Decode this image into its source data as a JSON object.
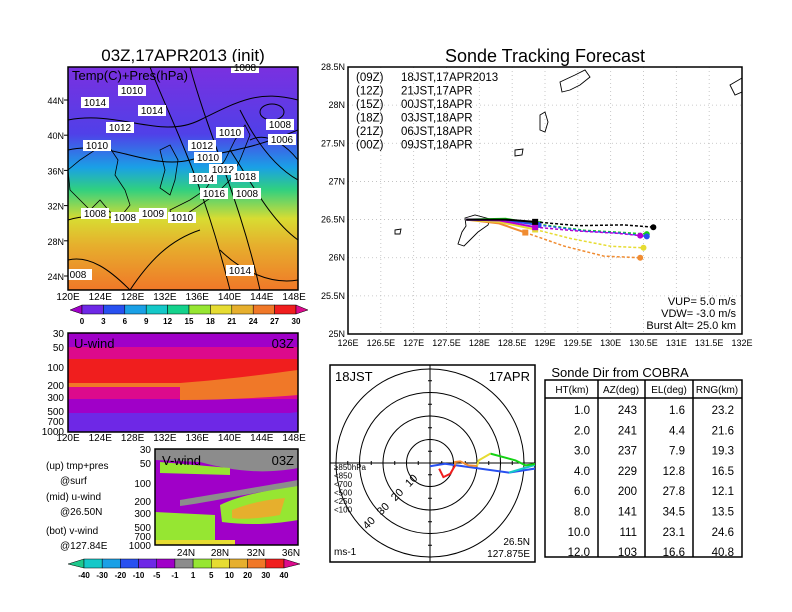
{
  "chart_data": [
    {
      "type": "heatmap",
      "title": "03Z,17APR2013 (init)",
      "label": "Temp(C)+Pres(hPa)",
      "xticks": [
        "120E",
        "124E",
        "128E",
        "132E",
        "136E",
        "140E",
        "144E",
        "148E"
      ],
      "yticks": [
        "24N",
        "28N",
        "32N",
        "36N",
        "40N",
        "44N"
      ],
      "contour_labels": [
        "1010",
        "1014",
        "1014",
        "1012",
        "1010",
        "1012",
        "1010",
        "1008",
        "1006",
        "1008",
        "1010",
        "1012",
        "1014",
        "1016",
        "1018",
        "1008",
        "1008",
        "1008",
        "1009",
        "1010",
        "1014",
        "008"
      ],
      "colorbar": {
        "labels": [
          "0",
          "3",
          "6",
          "9",
          "12",
          "15",
          "18",
          "21",
          "24",
          "27",
          "30"
        ],
        "colors": [
          "#a000c8",
          "#6e28e6",
          "#2850f0",
          "#1aa0e6",
          "#14c8c8",
          "#14d28c",
          "#96e632",
          "#e6dc32",
          "#e6af2d",
          "#f07828",
          "#f01e1e",
          "#dc0a8c"
        ]
      }
    },
    {
      "type": "heatmap",
      "label": "U-wind",
      "time": "03Z",
      "xticks": [
        "120E",
        "124E",
        "128E",
        "132E",
        "136E",
        "140E",
        "144E",
        "148E"
      ],
      "yticks": [
        "30",
        "50",
        "100",
        "200",
        "300",
        "500",
        "700",
        "1000"
      ]
    },
    {
      "type": "heatmap",
      "label": "V-wind",
      "time": "03Z",
      "xticks": [
        "24N",
        "28N",
        "32N",
        "36N"
      ],
      "yticks": [
        "30",
        "50",
        "100",
        "200",
        "300",
        "500",
        "700",
        "1000"
      ],
      "colorbar": {
        "labels": [
          "-40",
          "-30",
          "-20",
          "-10",
          "-5",
          "-1",
          "1",
          "5",
          "10",
          "20",
          "30",
          "40"
        ],
        "colors": [
          "#1ec88c",
          "#14c8c8",
          "#1aa0e6",
          "#2850f0",
          "#6e28e6",
          "#a000c8",
          "#8c8c8c",
          "#96e632",
          "#e6dc32",
          "#e6af2d",
          "#f07828",
          "#f01e1e",
          "#dc0a8c"
        ]
      }
    },
    {
      "type": "line",
      "title": "Sonde Tracking Forecast",
      "xticks": [
        126,
        126.5,
        127,
        127.5,
        128,
        128.5,
        129,
        129.5,
        130,
        130.5,
        131,
        131.5,
        132
      ],
      "xtick_labels": [
        "126E",
        "126.5E",
        "127E",
        "127.5E",
        "128E",
        "128.5E",
        "129E",
        "129.5E",
        "130E",
        "130.5E",
        "131E",
        "131.5E",
        "132E"
      ],
      "yticks": [
        25,
        25.5,
        26,
        26.5,
        27,
        27.5,
        28,
        28.5
      ],
      "ytick_labels": [
        "25N",
        "25.5N",
        "26N",
        "26.5N",
        "27N",
        "27.5N",
        "28N",
        "28.5N"
      ],
      "xlim": [
        126,
        132
      ],
      "ylim": [
        25,
        28.5
      ],
      "series": [
        {
          "name": "(09Z)",
          "label": "18JST,17APR2013",
          "color": "#000000",
          "solid": [
            [
              127.8,
              26.5
            ],
            [
              128.4,
              26.5
            ],
            [
              128.85,
              26.47
            ]
          ],
          "dashed": [
            [
              128.85,
              26.47
            ],
            [
              129.5,
              26.42
            ],
            [
              130.2,
              26.43
            ],
            [
              130.65,
              26.4
            ]
          ]
        },
        {
          "name": "(12Z)",
          "label": "21JST,17APR",
          "color": "#b400d2",
          "solid": [
            [
              127.8,
              26.5
            ],
            [
              128.3,
              26.49
            ],
            [
              128.85,
              26.4
            ]
          ],
          "dashed": [
            [
              128.85,
              26.4
            ],
            [
              129.5,
              26.35
            ],
            [
              130.1,
              26.32
            ],
            [
              130.45,
              26.29
            ]
          ]
        },
        {
          "name": "(15Z)",
          "label": "00JST,18APR",
          "color": "#2850f0",
          "solid": [
            [
              127.8,
              26.5
            ],
            [
              128.4,
              26.49
            ],
            [
              128.9,
              26.43
            ]
          ],
          "dashed": [
            [
              128.9,
              26.43
            ],
            [
              129.6,
              26.35
            ],
            [
              130.2,
              26.32
            ],
            [
              130.55,
              26.28
            ]
          ]
        },
        {
          "name": "(18Z)",
          "label": "03JST,18APR",
          "color": "#14d214",
          "solid": [
            [
              127.8,
              26.5
            ],
            [
              128.4,
              26.51
            ],
            [
              128.9,
              26.44
            ]
          ],
          "dashed": [
            [
              128.9,
              26.44
            ],
            [
              129.6,
              26.36
            ],
            [
              130.2,
              26.33
            ],
            [
              130.55,
              26.31
            ]
          ]
        },
        {
          "name": "(21Z)",
          "label": "06JST,18APR",
          "color": "#e6dc32",
          "solid": [
            [
              127.8,
              26.5
            ],
            [
              128.3,
              26.47
            ],
            [
              128.85,
              26.37
            ]
          ],
          "dashed": [
            [
              128.85,
              26.37
            ],
            [
              129.4,
              26.25
            ],
            [
              130.0,
              26.15
            ],
            [
              130.5,
              26.13
            ]
          ]
        },
        {
          "name": "(00Z)",
          "label": "09JST,18APR",
          "color": "#f08c32",
          "solid": [
            [
              127.8,
              26.5
            ],
            [
              128.3,
              26.45
            ],
            [
              128.7,
              26.33
            ]
          ],
          "dashed": [
            [
              128.7,
              26.33
            ],
            [
              129.3,
              26.15
            ],
            [
              129.9,
              26.02
            ],
            [
              130.45,
              26.0
            ]
          ]
        }
      ],
      "annotations": [
        "VUP= 5.0 m/s",
        "VDW= -3.0 m/s",
        "Burst Alt= 25.0 km"
      ]
    },
    {
      "type": "line",
      "title_left": "18JST",
      "title_right": "17APR",
      "ring_labels": [
        "10",
        "20",
        "30",
        "40"
      ],
      "unit": "ms-1",
      "location": [
        "26.5N",
        "127.875E"
      ],
      "legend": [
        {
          "label": "≥850hPa",
          "color": "#f01e1e"
        },
        {
          "label": "<850",
          "color": "#f08c32"
        },
        {
          "label": "<700",
          "color": "#e6dc32"
        },
        {
          "label": "<500",
          "color": "#14d214"
        },
        {
          "label": "<250",
          "color": "#14c8c8"
        },
        {
          "label": "<100",
          "color": "#2850f0"
        }
      ],
      "series": [
        {
          "name": "≥850hPa",
          "color": "#f01e1e",
          "uv": [
            [
              3.9,
              -2.4
            ],
            [
              5.7,
              -6.0
            ],
            [
              8.6,
              -4.6
            ],
            [
              10.7,
              -1.0
            ]
          ]
        },
        {
          "name": "<850",
          "color": "#f08c32",
          "uv": [
            [
              10.7,
              -1.0
            ],
            [
              10.7,
              0.4
            ],
            [
              12.9,
              0.7
            ],
            [
              16.4,
              -1.0
            ],
            [
              20.0,
              -1.3
            ]
          ]
        },
        {
          "name": "<700",
          "color": "#e6dc32",
          "uv": [
            [
              20.0,
              -1.3
            ],
            [
              20.7,
              1.1
            ],
            [
              25.7,
              4.0
            ]
          ]
        },
        {
          "name": "<500",
          "color": "#14d214",
          "uv": [
            [
              25.7,
              4.0
            ],
            [
              36.4,
              1.1
            ],
            [
              40.7,
              -1.0
            ],
            [
              45.7,
              -0.3
            ]
          ]
        },
        {
          "name": "<250",
          "color": "#14c8c8",
          "uv": [
            [
              33.6,
              -4.1
            ],
            [
              46.4,
              -0.3
            ],
            [
              52.0,
              -3.9
            ]
          ]
        },
        {
          "name": "<100",
          "color": "#2850f0",
          "uv": [
            [
              0,
              -1.4
            ],
            [
              6.4,
              -0.3
            ],
            [
              33.6,
              -4.1
            ],
            [
              46.4,
              -2.1
            ]
          ]
        }
      ]
    },
    {
      "type": "table",
      "title": "Sonde Dir from COBRA",
      "columns": [
        "HT(km)",
        "AZ(deg)",
        "EL(deg)",
        "RNG(km)"
      ],
      "rows": [
        [
          "1.0",
          "243",
          "1.6",
          "23.2"
        ],
        [
          "2.0",
          "241",
          "4.4",
          "21.6"
        ],
        [
          "3.0",
          "237",
          "7.9",
          "19.3"
        ],
        [
          "4.0",
          "229",
          "12.8",
          "16.5"
        ],
        [
          "6.0",
          "200",
          "27.8",
          "12.1"
        ],
        [
          "8.0",
          "141",
          "34.5",
          "13.5"
        ],
        [
          "10.0",
          "111",
          "23.1",
          "24.6"
        ],
        [
          "12.0",
          "103",
          "16.6",
          "40.8"
        ]
      ]
    }
  ],
  "side_notes": [
    "(up) tmp+pres",
    "@surf",
    "(mid) u-wind",
    "@26.50N",
    "(bot) v-wind",
    "@127.84E"
  ]
}
